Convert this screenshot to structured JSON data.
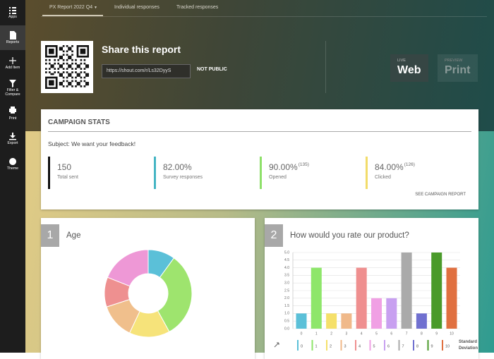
{
  "sidebar": {
    "items": [
      "Apps",
      "Reports",
      "Add Item",
      "Filter & Compare",
      "Print",
      "Export",
      "Theme"
    ],
    "active": 1
  },
  "tabs": [
    "PX Report 2022 Q4",
    "Individual responses",
    "Tracked responses"
  ],
  "share": {
    "title": "Share this report",
    "url": "https://shout.com/r/Ls32DyyS",
    "status": "NOT PUBLIC"
  },
  "modes": [
    {
      "caption": "LIVE",
      "label": "Web"
    },
    {
      "caption": "PREVIEW",
      "label": "Print"
    }
  ],
  "campaign": {
    "title": "CAMPAIGN STATS",
    "subject": "Subject: We want your feedback!",
    "stats": [
      {
        "value": "150",
        "label": "Total sent",
        "color": "#111111"
      },
      {
        "value": "82.00%",
        "label": "Survey responses",
        "color": "#45b5c4"
      },
      {
        "value": "90.00%",
        "count": "(135)",
        "label": "Opened",
        "color": "#8ee06a"
      },
      {
        "value": "84.00%",
        "count": "(126)",
        "label": "Clicked",
        "color": "#f2dc6a"
      }
    ],
    "link": "SEE CAMPAIGN REPORT"
  },
  "chart_data": [
    {
      "type": "pie",
      "number": "1",
      "title": "Age",
      "donut": true,
      "values": [
        10,
        32,
        15,
        13,
        11,
        19
      ],
      "colors": [
        "#5bc0d8",
        "#9ee46e",
        "#f6e37a",
        "#f0bf8c",
        "#ee9090",
        "#ee98d6"
      ]
    },
    {
      "type": "bar",
      "number": "2",
      "title": "How would you rate our product?",
      "categories": [
        "0",
        "1",
        "2",
        "3",
        "4",
        "5",
        "6",
        "7",
        "8",
        "9",
        "10"
      ],
      "values": [
        1,
        4,
        1,
        1,
        4,
        2,
        2,
        5,
        1,
        5,
        4
      ],
      "colors": [
        "#5bc0d8",
        "#8ee66a",
        "#f5e06a",
        "#f0b98a",
        "#ef8f8f",
        "#f0a0e4",
        "#c8a0f0",
        "#aaaaaa",
        "#7070d0",
        "#4a9a2a",
        "#e07040"
      ],
      "ylim": [
        0,
        5
      ],
      "yticks": [
        {
          "value": 0,
          "label": "0.0"
        },
        0.5,
        {
          "value": 1,
          "label": "1.0"
        },
        1.5,
        {
          "value": 2,
          "label": "2.0"
        },
        2.5,
        {
          "value": 3,
          "label": "3.0"
        },
        3.5,
        {
          "value": 4,
          "label": "4.0"
        },
        4.5,
        {
          "value": 5,
          "label": "5.0"
        }
      ],
      "grid": true,
      "legend_extra": "Standard Deviation"
    }
  ]
}
